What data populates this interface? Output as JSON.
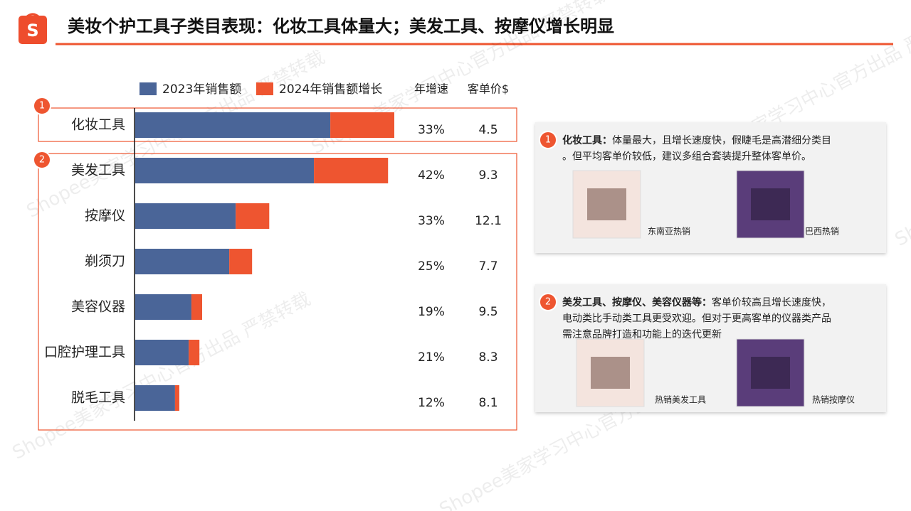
{
  "header": {
    "title": "美妆个护工具子类目表现：化妆工具体量大；美发工具、按摩仪增长明显"
  },
  "watermark": "Shopee美家学习中心官方出品 严禁转载",
  "chart_data": {
    "type": "bar",
    "orientation": "horizontal",
    "stacked": true,
    "categories": [
      "化妆工具",
      "美发工具",
      "按摩仪",
      "剃须刀",
      "美容仪器",
      "口腔护理工具",
      "脱毛工具"
    ],
    "series": [
      {
        "name": "2023年销售额",
        "color": "#4a6598",
        "values": [
          100,
          91.6,
          51.5,
          48.2,
          28.8,
          27.4,
          20.4
        ]
      },
      {
        "name": "2024年销售额增长",
        "color": "#ee5530",
        "values": [
          32.8,
          38,
          17.2,
          11.7,
          5.5,
          5.5,
          2.2
        ]
      }
    ],
    "columns": [
      {
        "header": "年增速",
        "values": [
          "33%",
          "42%",
          "33%",
          "25%",
          "19%",
          "21%",
          "12%"
        ]
      },
      {
        "header": "客单价$",
        "values": [
          "4.5",
          "9.3",
          "12.1",
          "7.7",
          "9.5",
          "8.3",
          "8.1"
        ]
      }
    ],
    "groups": [
      {
        "badge": "1",
        "first": 0,
        "last": 0
      },
      {
        "badge": "2",
        "first": 1,
        "last": 6
      }
    ]
  },
  "notes": [
    {
      "badge": "1",
      "lead": "化妆工具：",
      "lines": [
        "体量最大，且增长速度快，假睫毛是高潜细分类目",
        "。但平均客单价较低，建议多组合套装提升整体客单价。"
      ],
      "captions": [
        "东南亚热销",
        "巴西热销"
      ]
    },
    {
      "badge": "2",
      "lead": "美发工具、按摩仪、美容仪器等：",
      "lines": [
        "客单价较高且增长速度快，",
        "电动类比手动类工具更受欢迎。但对于更高客单的仪器类产品",
        "需注意品牌打造和功能上的迭代更新"
      ],
      "captions": [
        "热销美发工具",
        "热销按摩仪"
      ]
    }
  ]
}
